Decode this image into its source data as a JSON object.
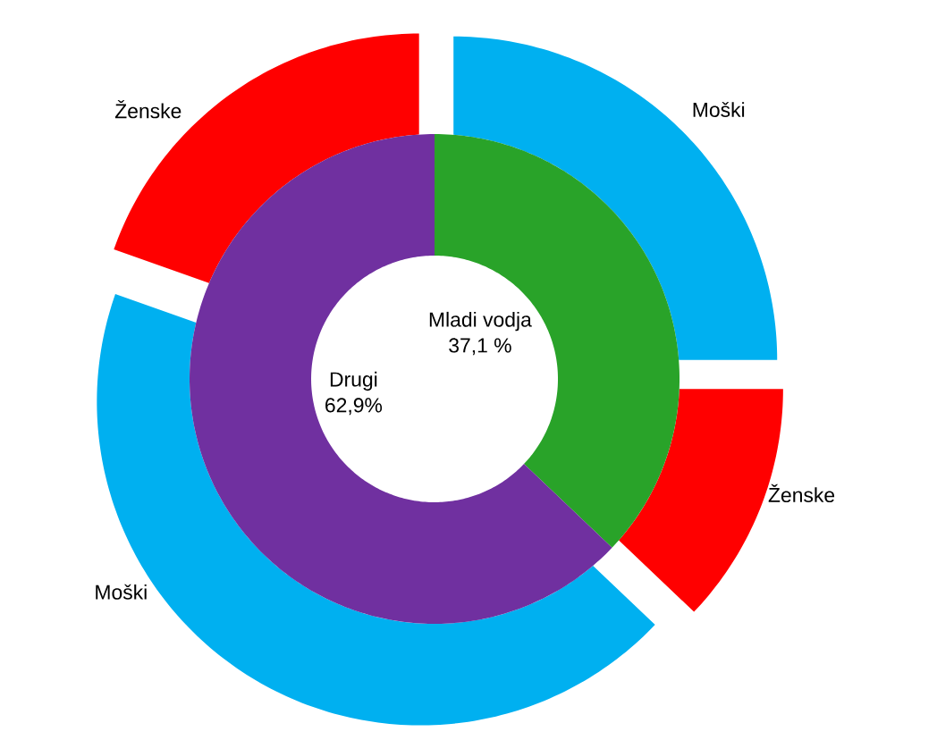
{
  "chart_data": [
    {
      "type": "donut",
      "categories": [
        "Mladi vodja",
        "Drugi"
      ],
      "values": [
        37.1,
        62.9
      ],
      "colors": [
        "#29a329",
        "#7030a0"
      ],
      "value_labels": [
        "37,1 %",
        "62,9%"
      ]
    },
    {
      "type": "donut",
      "categories": [
        "Moški",
        "Ženske",
        "Moški",
        "Ženske"
      ],
      "values": [
        25,
        12.1,
        43.3,
        19.6
      ],
      "colors": [
        "#00b0f0",
        "#ff0000",
        "#00b0f0",
        "#ff0000"
      ]
    }
  ]
}
